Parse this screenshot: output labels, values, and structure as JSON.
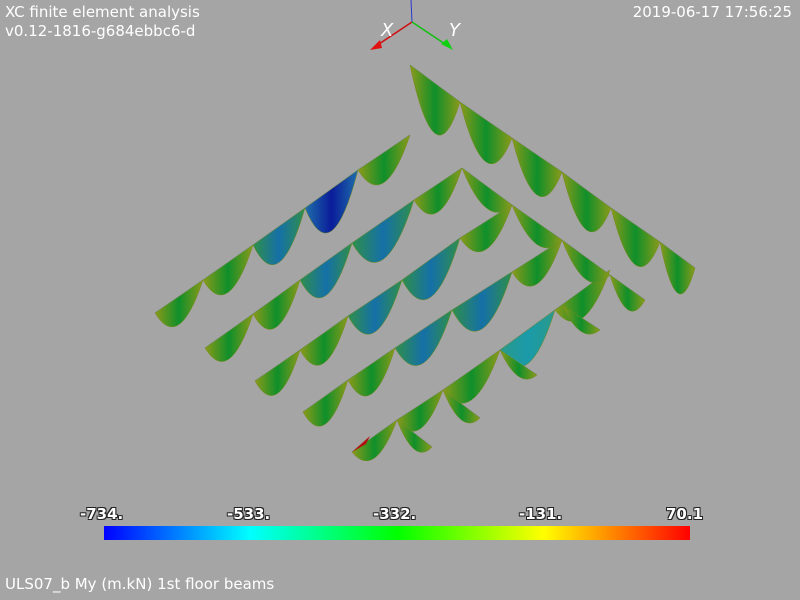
{
  "header": {
    "title": "XC finite element analysis",
    "version": "v0.12-1816-g684ebbc6-d",
    "timestamp": "2019-06-17 17:56:25"
  },
  "axes": {
    "x_label": "X",
    "y_label": "Y"
  },
  "colorbar": {
    "ticks": [
      "-734.",
      "-533.",
      "-332.",
      "-131.",
      "70.1"
    ],
    "min": -734,
    "max": 70.1,
    "colors": [
      "#0000ff",
      "#00ffff",
      "#00ff00",
      "#ffff00",
      "#ff0000"
    ]
  },
  "caption": "ULS07_b My (m.kN) 1st floor beams"
}
